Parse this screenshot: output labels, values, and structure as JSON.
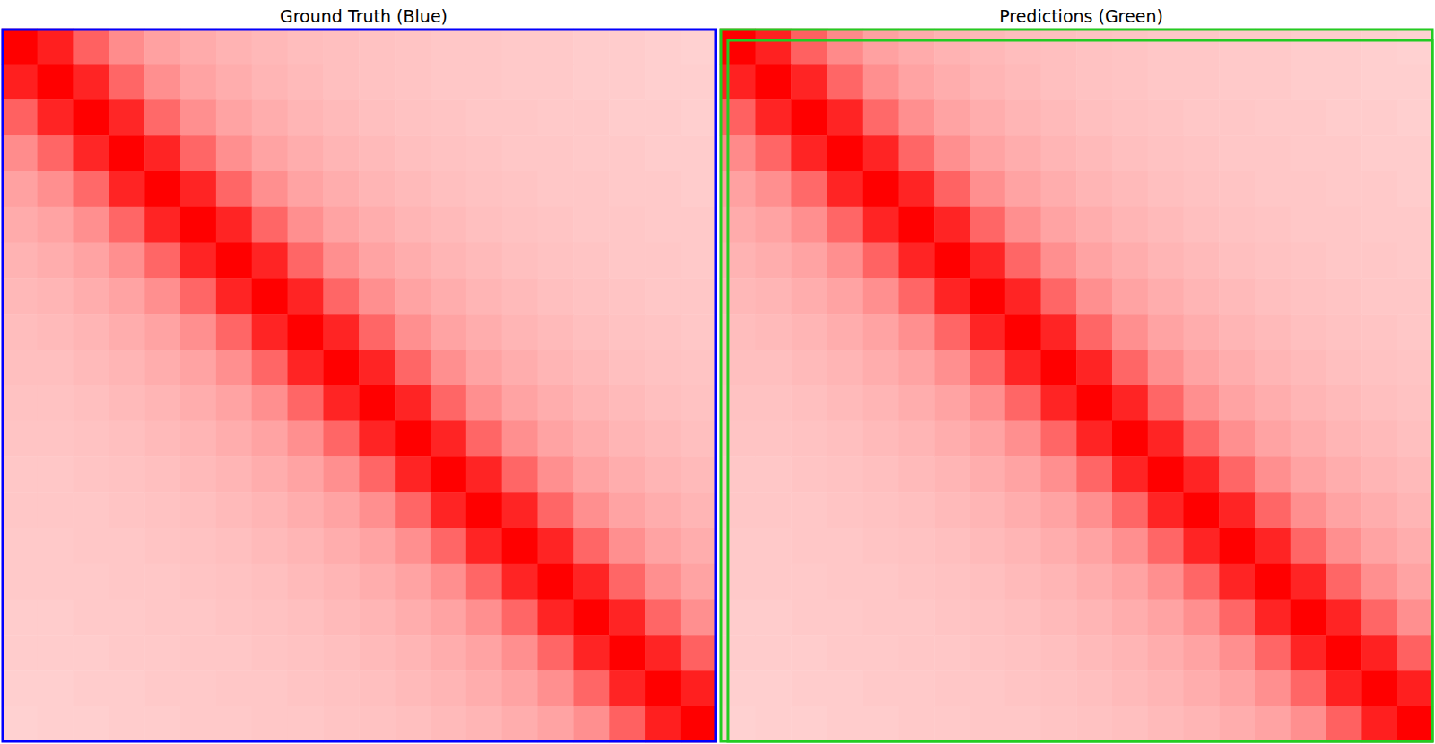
{
  "chart_data": [
    {
      "type": "heatmap",
      "title": "Ground Truth (Blue)",
      "xlim": [
        0,
        100
      ],
      "ylim": [
        0,
        100
      ],
      "tick_labels": false,
      "color": "#ff0000",
      "zlim": [
        0,
        100
      ],
      "boxes": {
        "color": "#0000ff",
        "values": [
          [
            0,
            0,
            100,
            100
          ]
        ]
      },
      "cells": [
        [
          100,
          88,
          62,
          45,
          37,
          33,
          30,
          28,
          26,
          25,
          24,
          23,
          22,
          22,
          21,
          21,
          20,
          20,
          19,
          18
        ],
        [
          88,
          100,
          86,
          60,
          44,
          36,
          32,
          29,
          27,
          25,
          24,
          23,
          22,
          22,
          21,
          21,
          20,
          20,
          19,
          19
        ],
        [
          62,
          86,
          100,
          85,
          59,
          44,
          36,
          32,
          29,
          27,
          25,
          24,
          23,
          22,
          22,
          21,
          21,
          20,
          20,
          19
        ],
        [
          45,
          60,
          85,
          100,
          86,
          60,
          44,
          36,
          32,
          29,
          27,
          25,
          24,
          23,
          22,
          22,
          21,
          21,
          20,
          20
        ],
        [
          37,
          44,
          59,
          86,
          100,
          86,
          60,
          44,
          36,
          32,
          29,
          27,
          25,
          24,
          23,
          22,
          22,
          21,
          21,
          20
        ],
        [
          33,
          36,
          44,
          60,
          86,
          100,
          86,
          60,
          44,
          36,
          32,
          29,
          27,
          25,
          24,
          23,
          22,
          22,
          21,
          21
        ],
        [
          30,
          32,
          36,
          44,
          60,
          86,
          100,
          86,
          60,
          44,
          36,
          32,
          29,
          27,
          25,
          24,
          23,
          22,
          22,
          21
        ],
        [
          28,
          29,
          32,
          36,
          44,
          60,
          86,
          100,
          86,
          60,
          44,
          36,
          32,
          29,
          27,
          25,
          24,
          23,
          22,
          22
        ],
        [
          26,
          27,
          29,
          32,
          36,
          44,
          60,
          86,
          100,
          86,
          60,
          44,
          36,
          32,
          29,
          27,
          25,
          24,
          23,
          22
        ],
        [
          25,
          25,
          27,
          29,
          32,
          36,
          44,
          60,
          86,
          100,
          86,
          60,
          44,
          36,
          32,
          29,
          27,
          25,
          24,
          23
        ],
        [
          24,
          24,
          25,
          27,
          29,
          32,
          36,
          44,
          60,
          86,
          100,
          86,
          60,
          44,
          36,
          32,
          29,
          27,
          25,
          24
        ],
        [
          23,
          23,
          24,
          25,
          27,
          29,
          32,
          36,
          44,
          60,
          86,
          100,
          86,
          60,
          44,
          36,
          32,
          29,
          27,
          25
        ],
        [
          22,
          22,
          23,
          24,
          25,
          27,
          29,
          32,
          36,
          44,
          60,
          86,
          100,
          86,
          60,
          44,
          36,
          32,
          29,
          27
        ],
        [
          22,
          22,
          22,
          23,
          24,
          25,
          27,
          29,
          32,
          36,
          44,
          60,
          86,
          100,
          86,
          60,
          44,
          36,
          32,
          29
        ],
        [
          21,
          21,
          22,
          22,
          23,
          24,
          25,
          27,
          29,
          32,
          36,
          44,
          60,
          86,
          100,
          86,
          60,
          44,
          36,
          32
        ],
        [
          21,
          21,
          21,
          22,
          22,
          23,
          24,
          25,
          27,
          29,
          32,
          36,
          44,
          60,
          86,
          100,
          86,
          60,
          44,
          36
        ],
        [
          20,
          20,
          21,
          21,
          22,
          22,
          23,
          24,
          25,
          27,
          29,
          32,
          36,
          44,
          60,
          86,
          100,
          86,
          60,
          44
        ],
        [
          20,
          20,
          20,
          21,
          21,
          22,
          22,
          23,
          24,
          25,
          27,
          29,
          32,
          36,
          44,
          60,
          86,
          100,
          86,
          62
        ],
        [
          19,
          19,
          20,
          20,
          21,
          21,
          22,
          22,
          23,
          24,
          25,
          27,
          29,
          32,
          36,
          44,
          60,
          86,
          100,
          88
        ],
        [
          18,
          19,
          19,
          20,
          20,
          21,
          21,
          22,
          22,
          23,
          24,
          25,
          27,
          29,
          32,
          36,
          44,
          62,
          88,
          100
        ]
      ]
    },
    {
      "type": "heatmap",
      "title": "Predictions (Green)",
      "xlim": [
        0,
        100
      ],
      "ylim": [
        0,
        100
      ],
      "tick_labels": false,
      "color": "#ff0000",
      "zlim": [
        0,
        100
      ],
      "boxes": {
        "color": "#22cc22",
        "values": [
          [
            0,
            0,
            100,
            100
          ],
          [
            1.0,
            1.5,
            100,
            100
          ]
        ]
      },
      "cells": [
        [
          100,
          87,
          62,
          46,
          37,
          33,
          30,
          28,
          26,
          25,
          24,
          23,
          22,
          22,
          21,
          21,
          20,
          20,
          19,
          18
        ],
        [
          87,
          100,
          86,
          60,
          44,
          36,
          32,
          29,
          27,
          25,
          24,
          23,
          22,
          22,
          21,
          21,
          20,
          20,
          19,
          19
        ],
        [
          62,
          86,
          100,
          86,
          59,
          44,
          36,
          32,
          29,
          27,
          25,
          24,
          23,
          22,
          22,
          21,
          21,
          20,
          20,
          19
        ],
        [
          46,
          60,
          86,
          100,
          86,
          60,
          44,
          36,
          32,
          29,
          27,
          25,
          24,
          23,
          22,
          22,
          21,
          21,
          20,
          20
        ],
        [
          37,
          44,
          59,
          86,
          100,
          86,
          61,
          44,
          36,
          32,
          29,
          27,
          25,
          24,
          23,
          22,
          22,
          21,
          21,
          20
        ],
        [
          33,
          36,
          44,
          60,
          86,
          100,
          86,
          60,
          44,
          36,
          32,
          29,
          27,
          25,
          24,
          23,
          22,
          22,
          21,
          21
        ],
        [
          30,
          32,
          36,
          44,
          61,
          86,
          100,
          86,
          60,
          44,
          36,
          32,
          29,
          27,
          25,
          24,
          23,
          22,
          22,
          21
        ],
        [
          28,
          29,
          32,
          36,
          44,
          60,
          86,
          100,
          86,
          60,
          44,
          36,
          32,
          29,
          27,
          25,
          24,
          23,
          22,
          22
        ],
        [
          26,
          27,
          29,
          32,
          36,
          44,
          60,
          86,
          100,
          86,
          60,
          44,
          36,
          32,
          29,
          27,
          25,
          24,
          23,
          22
        ],
        [
          25,
          25,
          27,
          29,
          32,
          36,
          44,
          60,
          86,
          100,
          86,
          60,
          44,
          36,
          32,
          29,
          27,
          25,
          24,
          23
        ],
        [
          24,
          24,
          25,
          27,
          29,
          32,
          36,
          44,
          60,
          86,
          100,
          86,
          60,
          44,
          36,
          32,
          29,
          27,
          25,
          24
        ],
        [
          23,
          23,
          24,
          25,
          27,
          29,
          32,
          36,
          44,
          60,
          86,
          100,
          86,
          60,
          44,
          36,
          32,
          29,
          27,
          25
        ],
        [
          22,
          22,
          23,
          24,
          25,
          27,
          29,
          32,
          36,
          44,
          60,
          86,
          100,
          86,
          60,
          44,
          36,
          32,
          29,
          27
        ],
        [
          22,
          22,
          22,
          23,
          24,
          25,
          27,
          29,
          32,
          36,
          44,
          60,
          86,
          100,
          86,
          60,
          44,
          36,
          32,
          29
        ],
        [
          21,
          21,
          22,
          22,
          23,
          24,
          25,
          27,
          29,
          32,
          36,
          44,
          60,
          86,
          100,
          86,
          60,
          44,
          36,
          32
        ],
        [
          21,
          21,
          21,
          22,
          22,
          23,
          24,
          25,
          27,
          29,
          32,
          36,
          44,
          60,
          86,
          100,
          86,
          60,
          44,
          36
        ],
        [
          20,
          20,
          21,
          21,
          22,
          22,
          23,
          24,
          25,
          27,
          29,
          32,
          36,
          44,
          60,
          86,
          100,
          86,
          60,
          44
        ],
        [
          20,
          20,
          20,
          21,
          21,
          22,
          22,
          23,
          24,
          25,
          27,
          29,
          32,
          36,
          44,
          60,
          86,
          100,
          87,
          62
        ],
        [
          19,
          19,
          20,
          20,
          21,
          21,
          22,
          22,
          23,
          24,
          25,
          27,
          29,
          32,
          36,
          44,
          60,
          87,
          100,
          88
        ],
        [
          18,
          19,
          19,
          20,
          20,
          21,
          21,
          22,
          22,
          23,
          24,
          25,
          27,
          29,
          32,
          36,
          44,
          62,
          88,
          100
        ]
      ]
    }
  ]
}
